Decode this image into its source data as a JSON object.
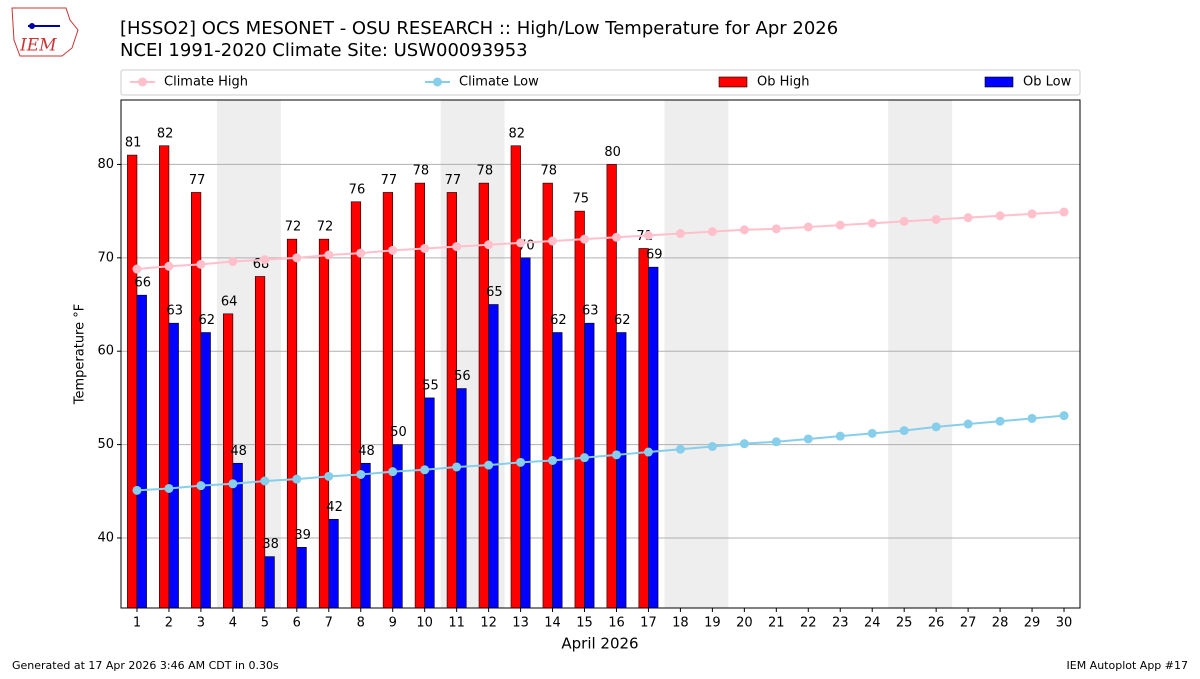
{
  "chart_data": {
    "type": "bar",
    "logo": "IEM",
    "title": "[HSSO2] OCS MESONET - OSU RESEARCH :: High/Low Temperature for Apr 2026",
    "subtitle": "NCEI 1991-2020 Climate Site: USW00093953",
    "xlabel": "April 2026",
    "ylabel": "Temperature °F",
    "footer_left": "Generated at 17 Apr 2026 3:46 AM CDT in 0.30s",
    "footer_right": "IEM Autoplot App #17",
    "x": [
      1,
      2,
      3,
      4,
      5,
      6,
      7,
      8,
      9,
      10,
      11,
      12,
      13,
      14,
      15,
      16,
      17,
      18,
      19,
      20,
      21,
      22,
      23,
      24,
      25,
      26,
      27,
      28,
      29,
      30
    ],
    "xlim": [
      0.5,
      30.5
    ],
    "xticks": [
      1,
      2,
      3,
      4,
      5,
      6,
      7,
      8,
      9,
      10,
      11,
      12,
      13,
      14,
      15,
      16,
      17,
      18,
      19,
      20,
      21,
      22,
      23,
      24,
      25,
      26,
      27,
      28,
      29,
      30
    ],
    "ylim": [
      32.5,
      86.9
    ],
    "yticks": [
      40,
      50,
      60,
      70,
      80
    ],
    "grid": true,
    "shaded_ranges": [
      [
        3.5,
        5.5
      ],
      [
        10.5,
        12.5
      ],
      [
        17.5,
        19.5
      ],
      [
        24.5,
        26.5
      ]
    ],
    "series": [
      {
        "name": "Climate High",
        "type": "line",
        "color": "#ffc0cb",
        "values": [
          68.8,
          69.1,
          69.3,
          69.6,
          69.8,
          70.0,
          70.3,
          70.5,
          70.8,
          71.0,
          71.2,
          71.4,
          71.6,
          71.8,
          72.0,
          72.2,
          72.4,
          72.6,
          72.8,
          73.0,
          73.1,
          73.3,
          73.5,
          73.7,
          73.9,
          74.1,
          74.3,
          74.5,
          74.7,
          74.9
        ]
      },
      {
        "name": "Climate Low",
        "type": "line",
        "color": "#87ceeb",
        "values": [
          45.1,
          45.3,
          45.6,
          45.8,
          46.1,
          46.3,
          46.6,
          46.8,
          47.1,
          47.3,
          47.6,
          47.8,
          48.1,
          48.3,
          48.6,
          48.9,
          49.2,
          49.5,
          49.8,
          50.1,
          50.3,
          50.6,
          50.9,
          51.2,
          51.5,
          51.9,
          52.2,
          52.5,
          52.8,
          53.1
        ]
      },
      {
        "name": "Ob High",
        "type": "bar",
        "color": "#ff0000",
        "offset": -0.15,
        "values": [
          81,
          82,
          77,
          64,
          68,
          72,
          72,
          76,
          77,
          78,
          77,
          78,
          82,
          78,
          75,
          80,
          71,
          null,
          null,
          null,
          null,
          null,
          null,
          null,
          null,
          null,
          null,
          null,
          null,
          null
        ]
      },
      {
        "name": "Ob Low",
        "type": "bar",
        "color": "#0000ff",
        "offset": 0.15,
        "values": [
          66,
          63,
          62,
          48,
          38,
          39,
          42,
          48,
          50,
          55,
          56,
          65,
          70,
          62,
          63,
          62,
          69,
          null,
          null,
          null,
          null,
          null,
          null,
          null,
          null,
          null,
          null,
          null,
          null,
          null
        ]
      }
    ],
    "bar_width": 0.3
  }
}
